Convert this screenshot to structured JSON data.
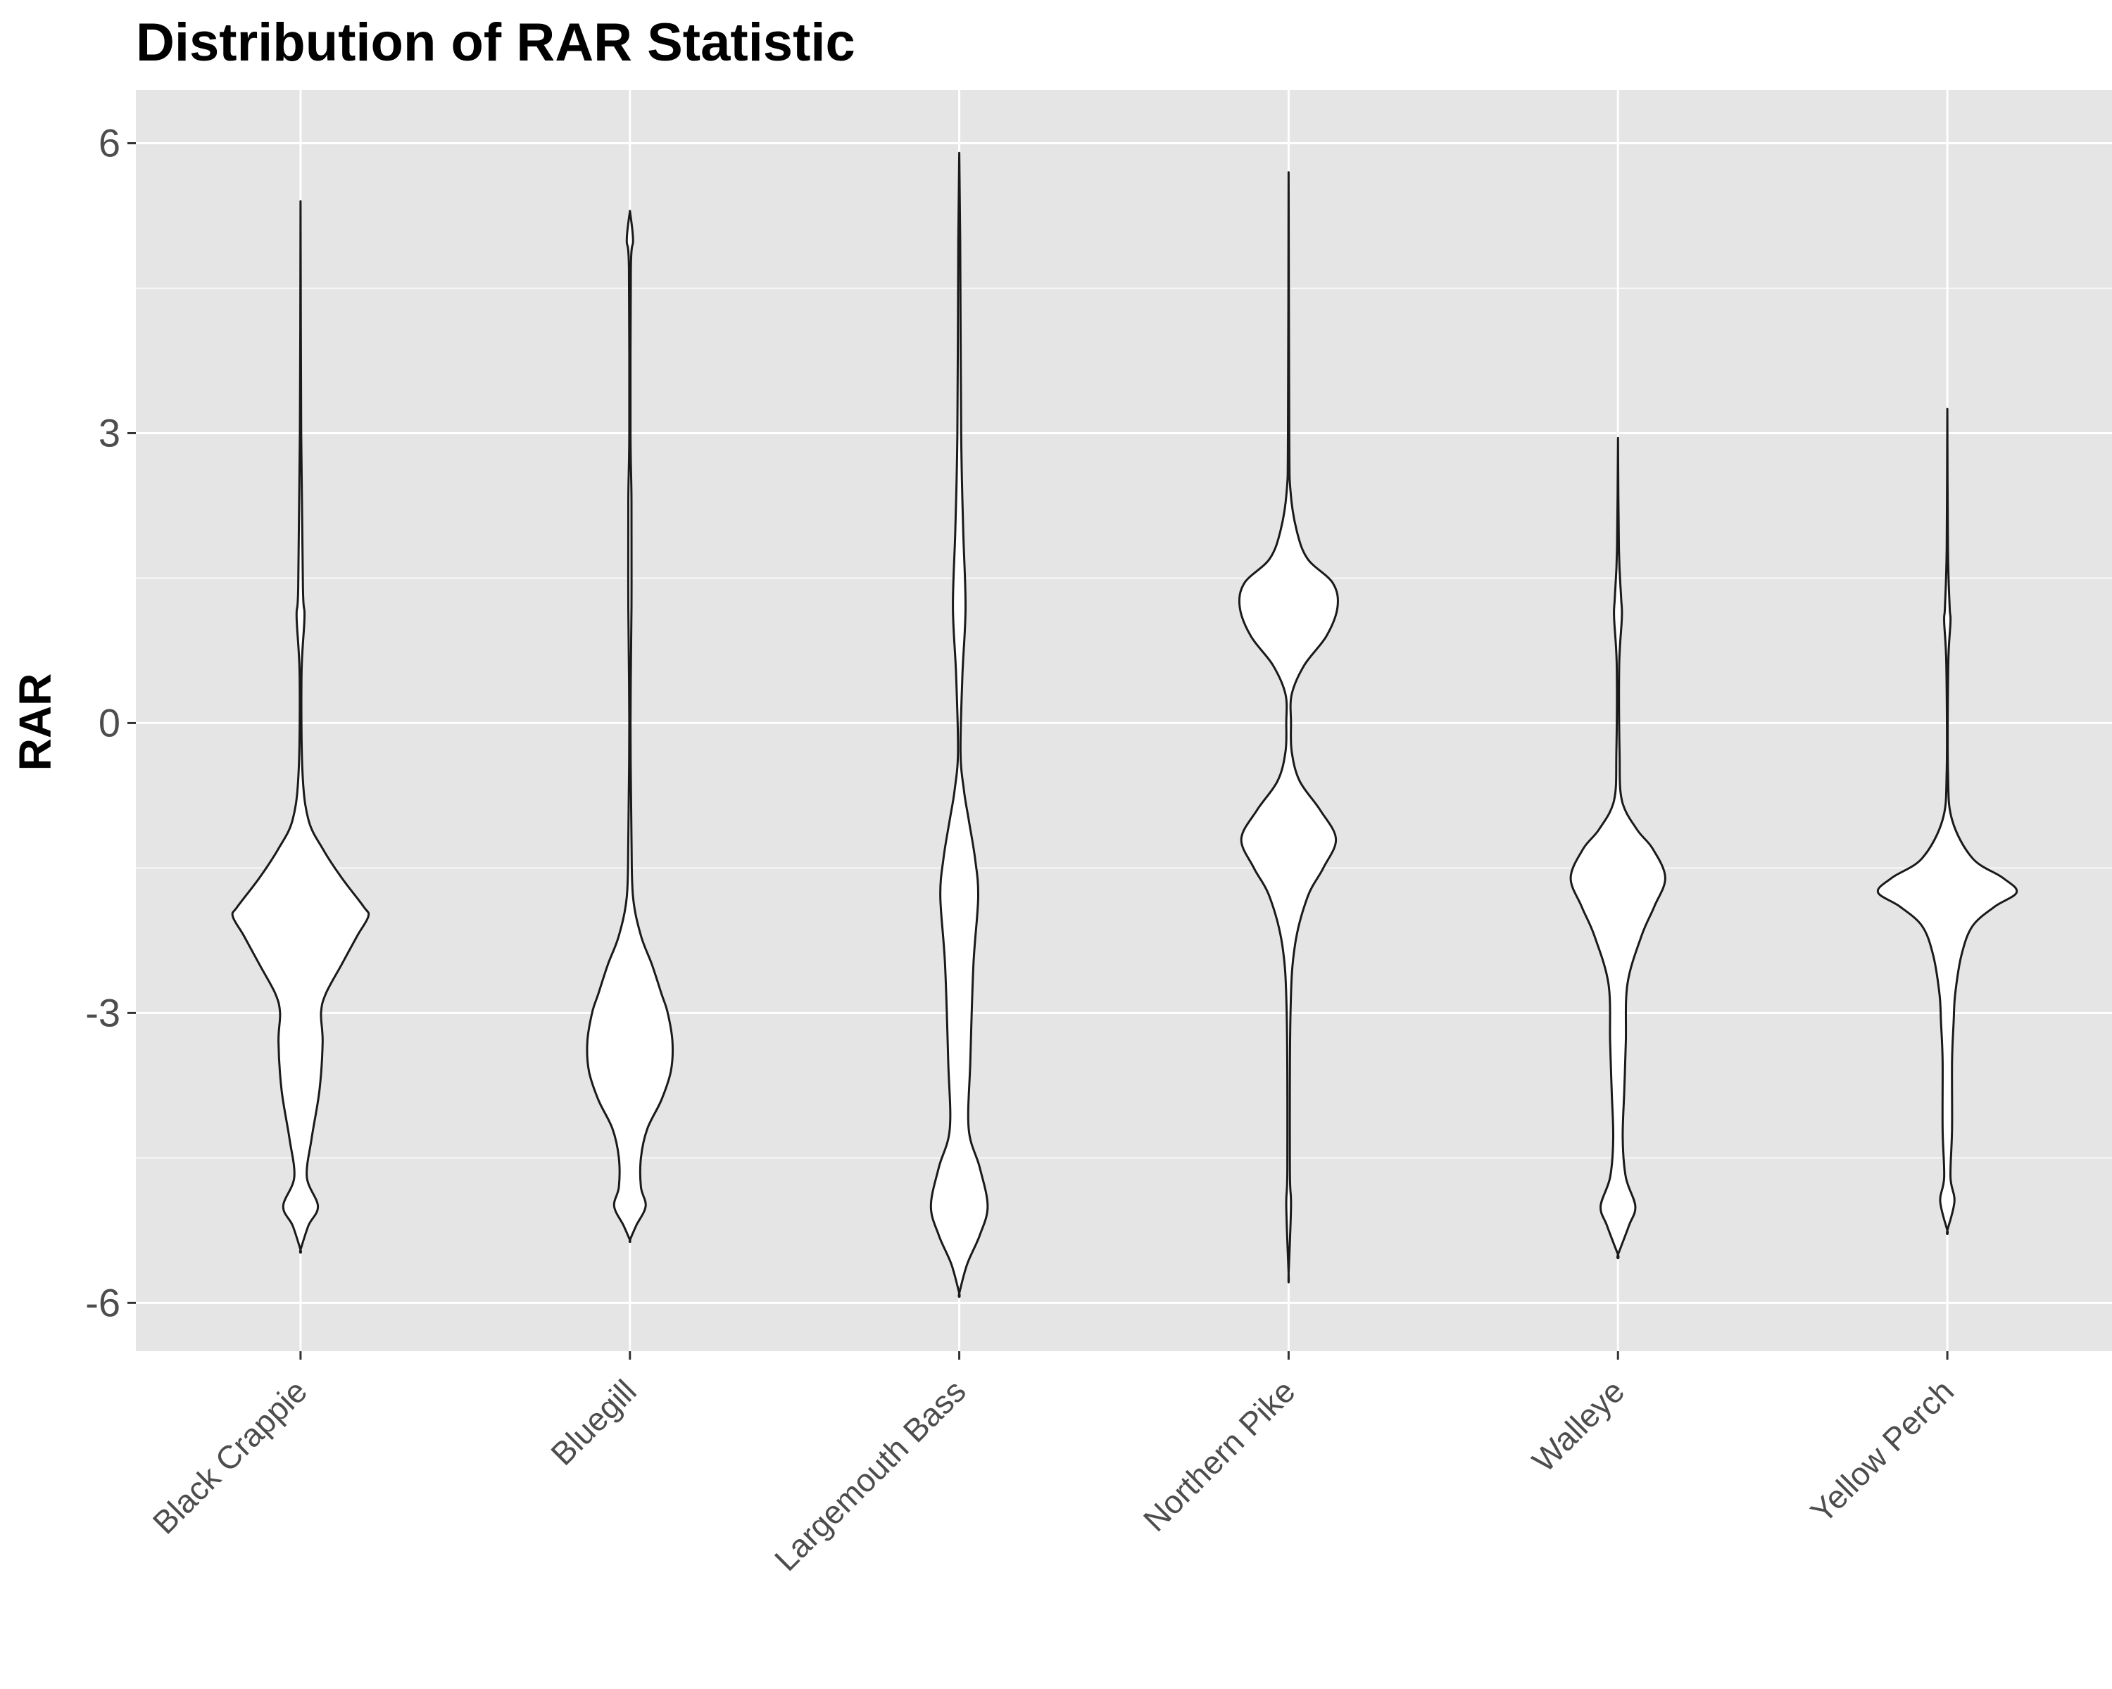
{
  "chart_data": {
    "type": "violin",
    "title": "Distribution of RAR Statistic",
    "xlabel": "",
    "ylabel": "RAR",
    "ylim": [
      -6.5,
      6.55
    ],
    "yticks": [
      -6,
      -3,
      0,
      3,
      6
    ],
    "ytick_labels": [
      "-6",
      "-3",
      "0",
      "3",
      "6"
    ],
    "grid": true,
    "legend": "none",
    "panel_color": "#e5e5e5",
    "violin_fill": "#ffffff",
    "violin_stroke": "#1a1a1a",
    "categories": [
      "Black Crappie",
      "Bluegill",
      "Largemouth Bass",
      "Northern Pike",
      "Walleye",
      "Yellow Perch"
    ],
    "series": [
      {
        "category": "Black Crappie",
        "profile": [
          [
            5.4,
            0
          ],
          [
            3.0,
            0.004
          ],
          [
            1.4,
            0.015
          ],
          [
            1.1,
            0.025
          ],
          [
            0.5,
            0.006
          ],
          [
            -0.5,
            0.012
          ],
          [
            -1.0,
            0.05
          ],
          [
            -1.3,
            0.14
          ],
          [
            -1.6,
            0.26
          ],
          [
            -1.9,
            0.4
          ],
          [
            -2.0,
            0.43
          ],
          [
            -2.2,
            0.36
          ],
          [
            -2.5,
            0.26
          ],
          [
            -2.8,
            0.16
          ],
          [
            -3.0,
            0.13
          ],
          [
            -3.3,
            0.14
          ],
          [
            -3.8,
            0.12
          ],
          [
            -4.3,
            0.07
          ],
          [
            -4.7,
            0.04
          ],
          [
            -5.0,
            0.11
          ],
          [
            -5.2,
            0.05
          ],
          [
            -5.45,
            0
          ]
        ]
      },
      {
        "category": "Bluegill",
        "profile": [
          [
            5.3,
            0
          ],
          [
            5.0,
            0.02
          ],
          [
            4.7,
            0.006
          ],
          [
            3.0,
            0.004
          ],
          [
            2.3,
            0.01
          ],
          [
            1.2,
            0.01
          ],
          [
            0.0,
            0.004
          ],
          [
            -1.2,
            0.01
          ],
          [
            -1.8,
            0.02
          ],
          [
            -2.2,
            0.07
          ],
          [
            -2.5,
            0.14
          ],
          [
            -2.8,
            0.2
          ],
          [
            -3.0,
            0.24
          ],
          [
            -3.3,
            0.27
          ],
          [
            -3.6,
            0.26
          ],
          [
            -3.9,
            0.2
          ],
          [
            -4.2,
            0.11
          ],
          [
            -4.5,
            0.07
          ],
          [
            -4.8,
            0.07
          ],
          [
            -5.0,
            0.1
          ],
          [
            -5.2,
            0.04
          ],
          [
            -5.35,
            0
          ]
        ]
      },
      {
        "category": "Largemouth Bass",
        "profile": [
          [
            5.9,
            0
          ],
          [
            5.0,
            0.006
          ],
          [
            3.0,
            0.012
          ],
          [
            2.0,
            0.025
          ],
          [
            1.2,
            0.04
          ],
          [
            0.5,
            0.02
          ],
          [
            -0.3,
            0.008
          ],
          [
            -0.7,
            0.03
          ],
          [
            -1.0,
            0.06
          ],
          [
            -1.4,
            0.1
          ],
          [
            -1.8,
            0.12
          ],
          [
            -2.5,
            0.09
          ],
          [
            -3.5,
            0.07
          ],
          [
            -4.2,
            0.06
          ],
          [
            -4.6,
            0.13
          ],
          [
            -5.0,
            0.18
          ],
          [
            -5.3,
            0.13
          ],
          [
            -5.6,
            0.05
          ],
          [
            -5.9,
            0
          ]
        ]
      },
      {
        "category": "Northern Pike",
        "profile": [
          [
            5.7,
            0
          ],
          [
            3.0,
            0.004
          ],
          [
            2.4,
            0.012
          ],
          [
            2.0,
            0.05
          ],
          [
            1.7,
            0.12
          ],
          [
            1.45,
            0.28
          ],
          [
            1.2,
            0.31
          ],
          [
            0.9,
            0.24
          ],
          [
            0.6,
            0.1
          ],
          [
            0.3,
            0.02
          ],
          [
            0.0,
            0.015
          ],
          [
            -0.3,
            0.02
          ],
          [
            -0.6,
            0.07
          ],
          [
            -0.9,
            0.2
          ],
          [
            -1.2,
            0.3
          ],
          [
            -1.5,
            0.22
          ],
          [
            -1.8,
            0.12
          ],
          [
            -2.3,
            0.04
          ],
          [
            -3.0,
            0.012
          ],
          [
            -4.6,
            0.008
          ],
          [
            -5.0,
            0.015
          ],
          [
            -5.7,
            0
          ]
        ]
      },
      {
        "category": "Walleye",
        "profile": [
          [
            2.95,
            0
          ],
          [
            1.8,
            0.006
          ],
          [
            1.3,
            0.02
          ],
          [
            1.1,
            0.025
          ],
          [
            0.6,
            0.008
          ],
          [
            -0.3,
            0.01
          ],
          [
            -0.8,
            0.025
          ],
          [
            -1.1,
            0.12
          ],
          [
            -1.3,
            0.22
          ],
          [
            -1.6,
            0.3
          ],
          [
            -1.9,
            0.23
          ],
          [
            -2.2,
            0.15
          ],
          [
            -2.7,
            0.06
          ],
          [
            -3.3,
            0.05
          ],
          [
            -3.8,
            0.04
          ],
          [
            -4.3,
            0.03
          ],
          [
            -4.7,
            0.05
          ],
          [
            -5.0,
            0.11
          ],
          [
            -5.2,
            0.07
          ],
          [
            -5.5,
            0
          ]
        ]
      },
      {
        "category": "Yellow Perch",
        "profile": [
          [
            3.25,
            0
          ],
          [
            1.8,
            0.004
          ],
          [
            1.2,
            0.015
          ],
          [
            1.05,
            0.02
          ],
          [
            0.6,
            0.006
          ],
          [
            -0.5,
            0.004
          ],
          [
            -1.0,
            0.03
          ],
          [
            -1.4,
            0.16
          ],
          [
            -1.6,
            0.35
          ],
          [
            -1.75,
            0.44
          ],
          [
            -1.9,
            0.3
          ],
          [
            -2.1,
            0.16
          ],
          [
            -2.4,
            0.09
          ],
          [
            -2.8,
            0.05
          ],
          [
            -3.1,
            0.04
          ],
          [
            -3.5,
            0.03
          ],
          [
            -4.2,
            0.03
          ],
          [
            -4.7,
            0.02
          ],
          [
            -4.95,
            0.045
          ],
          [
            -5.25,
            0
          ]
        ]
      }
    ]
  }
}
